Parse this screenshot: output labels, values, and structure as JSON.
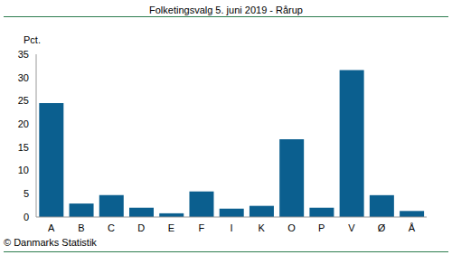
{
  "chart_data": {
    "type": "bar",
    "title": "Folketingsvalg 5. juni 2019 - Rårup",
    "y_label": "Pct.",
    "annotation": "© Danmarks Statistik",
    "categories": [
      "A",
      "B",
      "C",
      "D",
      "E",
      "F",
      "I",
      "K",
      "O",
      "P",
      "V",
      "Ø",
      "Å"
    ],
    "values": [
      24.5,
      2.9,
      4.7,
      2.0,
      0.8,
      5.5,
      1.8,
      2.4,
      16.7,
      2.0,
      31.6,
      4.7,
      1.3
    ],
    "color": "#0b5f8f",
    "ylim": [
      0,
      35
    ],
    "yticks": [
      0,
      5,
      10,
      15,
      20,
      25,
      30,
      35
    ],
    "grid": false
  }
}
